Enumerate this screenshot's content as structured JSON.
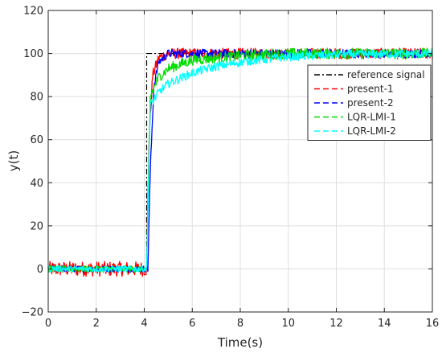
{
  "chart_data": {
    "type": "line",
    "xlabel": "Time(s)",
    "ylabel": "y(t)",
    "xlim": [
      0,
      16
    ],
    "ylim": [
      -20,
      120
    ],
    "xticks": [
      0,
      2,
      4,
      6,
      8,
      10,
      12,
      14,
      16
    ],
    "yticks": [
      -20,
      0,
      20,
      40,
      60,
      80,
      100,
      120
    ],
    "grid": true,
    "legend_position": "top-right",
    "series": [
      {
        "name": "reference signal",
        "color": "#000000",
        "style": "dash-dot",
        "points": [
          [
            0,
            0
          ],
          [
            4.1,
            0
          ],
          [
            4.1,
            100
          ],
          [
            16,
            100
          ]
        ]
      },
      {
        "name": "present-1",
        "color": "#ff0000",
        "style": "dashed",
        "points": [
          [
            0,
            0
          ],
          [
            4.1,
            0
          ],
          [
            4.2,
            60
          ],
          [
            4.35,
            90
          ],
          [
            4.6,
            98
          ],
          [
            5.0,
            100
          ],
          [
            16,
            100
          ]
        ],
        "noise_before_step": 3.5,
        "noise_after_step": 2.5
      },
      {
        "name": "present-2",
        "color": "#0000ff",
        "style": "dashed",
        "points": [
          [
            0,
            0
          ],
          [
            4.15,
            0
          ],
          [
            4.25,
            45
          ],
          [
            4.4,
            85
          ],
          [
            4.6,
            96
          ],
          [
            5.0,
            100
          ],
          [
            16,
            100
          ]
        ],
        "noise_before_step": 1.5,
        "noise_after_step": 2
      },
      {
        "name": "LQR-LMI-1",
        "color": "#00dd00",
        "style": "dashed",
        "points": [
          [
            0,
            0
          ],
          [
            4.1,
            0
          ],
          [
            4.25,
            80
          ],
          [
            4.6,
            89
          ],
          [
            5.0,
            93
          ],
          [
            6.0,
            97
          ],
          [
            8.0,
            99
          ],
          [
            10.0,
            100
          ],
          [
            16,
            100
          ]
        ],
        "noise_before_step": 1.5,
        "noise_after_step": 2.5
      },
      {
        "name": "LQR-LMI-2",
        "color": "#00ffff",
        "style": "dashed",
        "points": [
          [
            0,
            0
          ],
          [
            4.1,
            0
          ],
          [
            4.25,
            76
          ],
          [
            4.6,
            82
          ],
          [
            5.0,
            86
          ],
          [
            6.0,
            91
          ],
          [
            7.0,
            94
          ],
          [
            8.0,
            96
          ],
          [
            10.0,
            98.5
          ],
          [
            12.0,
            99.5
          ],
          [
            16,
            100
          ]
        ],
        "noise_before_step": 1.5,
        "noise_after_step": 2
      }
    ]
  }
}
